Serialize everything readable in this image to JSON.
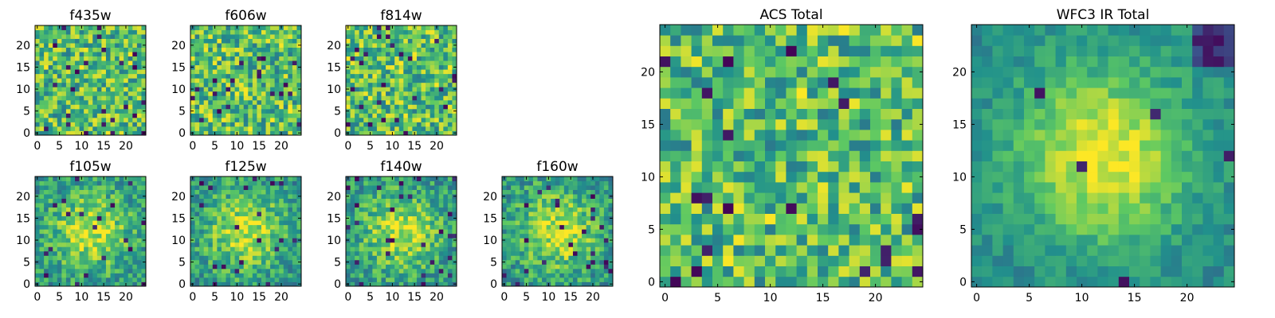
{
  "colors": {
    "colormap": [
      "#440154",
      "#3b528b",
      "#21918c",
      "#5ec962",
      "#fde725"
    ],
    "frame": "#000000",
    "background": "#ffffff"
  },
  "chart_data": [
    {
      "type": "heatmap",
      "id": "f435w",
      "title": "f435w",
      "grid_size": 25,
      "xlim": [
        -0.5,
        24.5
      ],
      "ylim": [
        -0.5,
        24.5
      ],
      "xticks": [
        "0",
        "5",
        "10",
        "15",
        "20"
      ],
      "yticks": [
        "0",
        "5",
        "10",
        "15",
        "20"
      ],
      "pattern": "noise",
      "seed": 11
    },
    {
      "type": "heatmap",
      "id": "f606w",
      "title": "f606w",
      "grid_size": 25,
      "xlim": [
        -0.5,
        24.5
      ],
      "ylim": [
        -0.5,
        24.5
      ],
      "xticks": [
        "0",
        "5",
        "10",
        "15",
        "20"
      ],
      "yticks": [
        "0",
        "5",
        "10",
        "15",
        "20"
      ],
      "pattern": "noise",
      "seed": 23
    },
    {
      "type": "heatmap",
      "id": "f814w",
      "title": "f814w",
      "grid_size": 25,
      "xlim": [
        -0.5,
        24.5
      ],
      "ylim": [
        -0.5,
        24.5
      ],
      "xticks": [
        "0",
        "5",
        "10",
        "15",
        "20"
      ],
      "yticks": [
        "0",
        "5",
        "10",
        "15",
        "20"
      ],
      "pattern": "noise",
      "seed": 37
    },
    {
      "type": "heatmap",
      "id": "f105w",
      "title": "f105w",
      "grid_size": 25,
      "xlim": [
        -0.5,
        24.5
      ],
      "ylim": [
        -0.5,
        24.5
      ],
      "xticks": [
        "0",
        "5",
        "10",
        "15",
        "20"
      ],
      "yticks": [
        "0",
        "5",
        "10",
        "15",
        "20"
      ],
      "pattern": "blob",
      "seed": 41
    },
    {
      "type": "heatmap",
      "id": "f125w",
      "title": "f125w",
      "grid_size": 25,
      "xlim": [
        -0.5,
        24.5
      ],
      "ylim": [
        -0.5,
        24.5
      ],
      "xticks": [
        "0",
        "5",
        "10",
        "15",
        "20"
      ],
      "yticks": [
        "0",
        "5",
        "10",
        "15",
        "20"
      ],
      "pattern": "blob",
      "seed": 53
    },
    {
      "type": "heatmap",
      "id": "f140w",
      "title": "f140w",
      "grid_size": 25,
      "xlim": [
        -0.5,
        24.5
      ],
      "ylim": [
        -0.5,
        24.5
      ],
      "xticks": [
        "0",
        "5",
        "10",
        "15",
        "20"
      ],
      "yticks": [
        "0",
        "5",
        "10",
        "15",
        "20"
      ],
      "pattern": "blob",
      "seed": 67
    },
    {
      "type": "heatmap",
      "id": "f160w",
      "title": "f160w",
      "grid_size": 25,
      "xlim": [
        -0.5,
        24.5
      ],
      "ylim": [
        -0.5,
        24.5
      ],
      "xticks": [
        "0",
        "5",
        "10",
        "15",
        "20"
      ],
      "yticks": [
        "0",
        "5",
        "10",
        "15",
        "20"
      ],
      "pattern": "blob",
      "seed": 79
    },
    {
      "type": "heatmap",
      "id": "acs-total",
      "title": "ACS Total",
      "grid_size": 25,
      "xlim": [
        -0.5,
        24.5
      ],
      "ylim": [
        -0.5,
        24.5
      ],
      "xticks": [
        "0",
        "5",
        "10",
        "15",
        "20"
      ],
      "yticks": [
        "0",
        "5",
        "10",
        "15",
        "20"
      ],
      "pattern": "noise",
      "seed": 97
    },
    {
      "type": "heatmap",
      "id": "wfc3-ir-total",
      "title": "WFC3 IR Total",
      "grid_size": 25,
      "xlim": [
        -0.5,
        24.5
      ],
      "ylim": [
        -0.5,
        24.5
      ],
      "xticks": [
        "0",
        "5",
        "10",
        "15",
        "20"
      ],
      "yticks": [
        "0",
        "5",
        "10",
        "15",
        "20"
      ],
      "pattern": "blob-strong",
      "seed": 131
    }
  ]
}
